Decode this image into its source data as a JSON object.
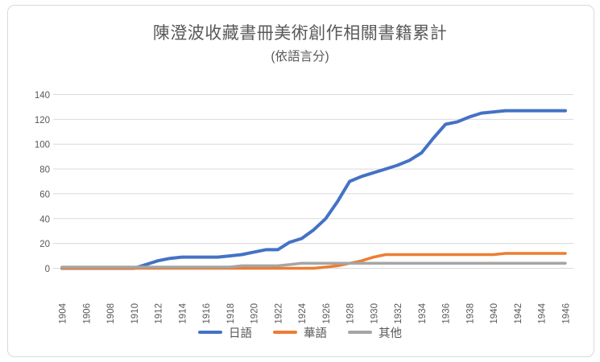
{
  "chart": {
    "title": "陳澄波收藏書冊美術創作相關書籍累計",
    "subtitle": "(依語言分)"
  },
  "chart_data": {
    "type": "line",
    "title": "陳澄波收藏書冊美術創作相關書籍累計",
    "subtitle": "(依語言分)",
    "x": [
      1904,
      1905,
      1906,
      1907,
      1908,
      1909,
      1910,
      1911,
      1912,
      1913,
      1914,
      1915,
      1916,
      1917,
      1918,
      1919,
      1920,
      1921,
      1922,
      1923,
      1924,
      1925,
      1926,
      1927,
      1928,
      1929,
      1930,
      1931,
      1932,
      1933,
      1934,
      1935,
      1936,
      1937,
      1938,
      1939,
      1940,
      1941,
      1942,
      1943,
      1944,
      1945,
      1946
    ],
    "x_tick_labels": [
      "1904",
      "1906",
      "1908",
      "1910",
      "1912",
      "1914",
      "1916",
      "1918",
      "1920",
      "1922",
      "1924",
      "1926",
      "1928",
      "1930",
      "1932",
      "1934",
      "1936",
      "1938",
      "1940",
      "1942",
      "1944",
      "1946"
    ],
    "xlim": [
      1904,
      1946
    ],
    "ylim": [
      0,
      140
    ],
    "y_ticks": [
      0,
      20,
      40,
      60,
      80,
      100,
      120,
      140
    ],
    "grid": true,
    "legend_position": "bottom",
    "axis_label_color": "#595959",
    "gridline_color": "#d9d9d9",
    "series": [
      {
        "name": "日語",
        "id": "japanese",
        "color": "#4472c4",
        "stroke_width": 4,
        "values": [
          0,
          0,
          0,
          0,
          0,
          0,
          0,
          3,
          6,
          8,
          9,
          9,
          9,
          9,
          10,
          11,
          13,
          15,
          15,
          21,
          24,
          31,
          40,
          54,
          70,
          74,
          77,
          80,
          83,
          87,
          93,
          105,
          116,
          118,
          122,
          125,
          126,
          127,
          127,
          127,
          127,
          127,
          127
        ]
      },
      {
        "name": "華語",
        "id": "mandarin",
        "color": "#ed7d31",
        "stroke_width": 3.5,
        "values": [
          0,
          0,
          0,
          0,
          0,
          0,
          0,
          0,
          0,
          0,
          0,
          0,
          0,
          0,
          0,
          0,
          0,
          0,
          0,
          0,
          0,
          0,
          1,
          2,
          4,
          6,
          9,
          11,
          11,
          11,
          11,
          11,
          11,
          11,
          11,
          11,
          11,
          12,
          12,
          12,
          12,
          12,
          12
        ]
      },
      {
        "name": "其他",
        "id": "other",
        "color": "#a5a5a5",
        "stroke_width": 3.5,
        "values": [
          1,
          1,
          1,
          1,
          1,
          1,
          1,
          1,
          1,
          1,
          1,
          1,
          1,
          1,
          1,
          2,
          2,
          2,
          2,
          3,
          4,
          4,
          4,
          4,
          4,
          4,
          4,
          4,
          4,
          4,
          4,
          4,
          4,
          4,
          4,
          4,
          4,
          4,
          4,
          4,
          4,
          4,
          4
        ]
      }
    ]
  }
}
